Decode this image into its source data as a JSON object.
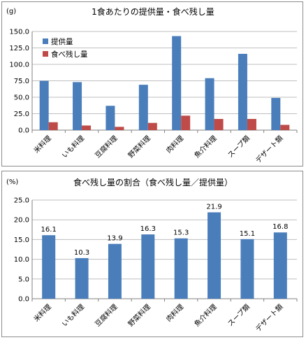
{
  "chart_data": [
    {
      "type": "bar",
      "title": "1食あたりの提供量・食べ残し量",
      "unit": "(g)",
      "categories": [
        "米料理",
        "いも料理",
        "豆腐料理",
        "野菜料理",
        "肉料理",
        "魚介料理",
        "スープ類",
        "デザート類"
      ],
      "series": [
        {
          "name": "提供量",
          "color": "#4a7ebb",
          "values": [
            75,
            73,
            37,
            69,
            143,
            79,
            116,
            49
          ]
        },
        {
          "name": "食べ残し量",
          "color": "#be4b48",
          "values": [
            12,
            7,
            5,
            11,
            22,
            17,
            17,
            8
          ]
        }
      ],
      "ylim": [
        0,
        150
      ],
      "yticks": [
        "0.0",
        "25.0",
        "50.0",
        "75.0",
        "100.0",
        "125.0",
        "150.0"
      ],
      "legend": "top-left",
      "grid": true
    },
    {
      "type": "bar",
      "title": "食べ残し量の割合（食べ残し量／提供量）",
      "unit": "(%)",
      "categories": [
        "米料理",
        "いも料理",
        "豆腐料理",
        "野菜料理",
        "肉料理",
        "魚介料理",
        "スープ類",
        "デザート類"
      ],
      "series": [
        {
          "color": "#4a7ebb",
          "values": [
            16.1,
            10.3,
            13.9,
            16.3,
            15.3,
            21.9,
            15.1,
            16.8
          ],
          "labels": [
            "16.1",
            "10.3",
            "13.9",
            "16.3",
            "15.3",
            "21.9",
            "15.1",
            "16.8"
          ]
        }
      ],
      "ylim": [
        0,
        25
      ],
      "yticks": [
        "0.0",
        "5.0",
        "10.0",
        "15.0",
        "20.0",
        "25.0"
      ],
      "grid": true
    }
  ]
}
